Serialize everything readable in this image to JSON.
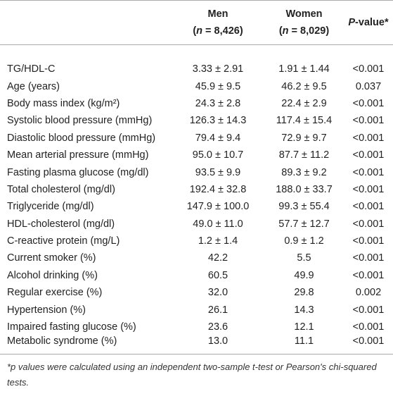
{
  "table": {
    "header": [
      [],
      [
        [
          "Men",
          "b"
        ],
        [
          "(",
          "b"
        ],
        [
          "n",
          "bi"
        ],
        [
          " = 8,426)",
          "b"
        ]
      ],
      [
        [
          "Women",
          "b"
        ],
        [
          "(",
          "b"
        ],
        [
          "n",
          "bi"
        ],
        [
          " = 8,029)",
          "b"
        ]
      ],
      [
        [
          "P",
          "bi"
        ],
        [
          "-value*",
          "b"
        ]
      ]
    ],
    "rows": [
      [
        "TG/HDL-C",
        "3.33 ± 2.91",
        "1.91 ± 1.44",
        "<0.001"
      ],
      [
        "Age (years)",
        "45.9 ± 9.5",
        "46.2 ± 9.5",
        "0.037"
      ],
      [
        "Body mass index (kg/m²)",
        "24.3 ± 2.8",
        "22.4 ± 2.9",
        "<0.001"
      ],
      [
        "Systolic blood pressure (mmHg)",
        "126.3 ± 14.3",
        "117.4 ± 15.4",
        "<0.001"
      ],
      [
        "Diastolic blood pressure (mmHg)",
        "79.4 ± 9.4",
        "72.9 ± 9.7",
        "<0.001"
      ],
      [
        "Mean arterial pressure (mmHg)",
        "95.0 ± 10.7",
        "87.7 ± 11.2",
        "<0.001"
      ],
      [
        "Fasting plasma glucose (mg/dl)",
        "93.5 ± 9.9",
        "89.3 ± 9.2",
        "<0.001"
      ],
      [
        "Total cholesterol (mg/dl)",
        "192.4 ± 32.8",
        "188.0 ± 33.7",
        "<0.001"
      ],
      [
        "Triglyceride (mg/dl)",
        "147.9 ± 100.0",
        "99.3 ± 55.4",
        "<0.001"
      ],
      [
        "HDL-cholesterol (mg/dl)",
        "49.0 ± 11.0",
        "57.7 ± 12.7",
        "<0.001"
      ],
      [
        "C-reactive protein (mg/L)",
        "1.2 ± 1.4",
        "0.9 ± 1.2",
        "<0.001"
      ],
      [
        "Current smoker (%)",
        "42.2",
        "5.5",
        "<0.001"
      ],
      [
        "Alcohol drinking (%)",
        "60.5",
        "49.9",
        "<0.001"
      ],
      [
        "Regular exercise (%)",
        "32.0",
        "29.8",
        "0.002"
      ],
      [
        "Hypertension (%)",
        "26.1",
        "14.3",
        "<0.001"
      ],
      [
        "Impaired fasting glucose (%)",
        "23.6",
        "12.1",
        "<0.001"
      ],
      [
        "Metabolic syndrome (%)",
        "13.0",
        "11.1",
        "<0.001"
      ]
    ],
    "footnote": "*p values were calculated using an independent two-sample t-test or Pearson's chi-squared tests."
  }
}
